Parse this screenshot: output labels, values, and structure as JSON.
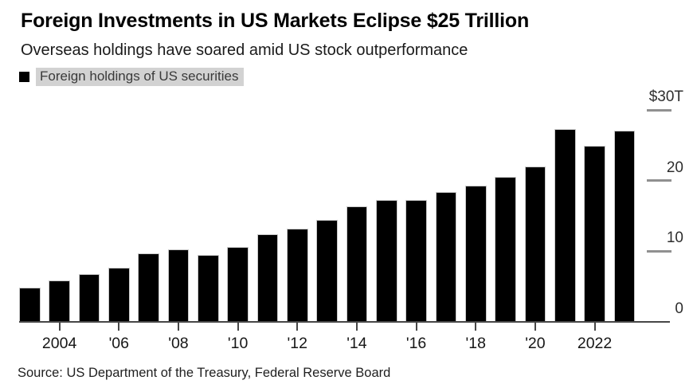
{
  "header": {
    "title": "Foreign Investments in US Markets Eclipse $25 Trillion",
    "subtitle": "Overseas holdings have soared amid US stock outperformance"
  },
  "legend": {
    "label": "Foreign holdings of US securities",
    "swatch_color": "#000000",
    "label_bg_color": "#d2d2d2"
  },
  "footer": {
    "source": "Source: US Department of the Treasury, Federal Reserve Board"
  },
  "chart_data": {
    "type": "bar",
    "title": "Foreign Investments in US Markets Eclipse $25 Trillion",
    "subtitle": "Overseas holdings have soared amid US stock outperformance",
    "series_name": "Foreign holdings of US securities",
    "unit": "USD trillions",
    "categories": [
      2003,
      2004,
      2005,
      2006,
      2007,
      2008,
      2009,
      2010,
      2011,
      2012,
      2013,
      2014,
      2015,
      2016,
      2017,
      2018,
      2019,
      2020,
      2021,
      2022,
      2023
    ],
    "values": [
      4.8,
      5.9,
      6.8,
      7.7,
      9.7,
      10.3,
      9.5,
      10.6,
      12.4,
      13.2,
      14.4,
      16.4,
      17.2,
      17.2,
      18.4,
      19.3,
      20.5,
      22.0,
      27.3,
      24.9,
      27.1
    ],
    "bar_color": "#000000",
    "ylim": [
      0,
      30
    ],
    "grid": false,
    "y_axis_side": "right",
    "legend_position": "top-left",
    "y_ticks": [
      {
        "value": 30,
        "label": "$30T"
      },
      {
        "value": 20,
        "label": "20"
      },
      {
        "value": 10,
        "label": "10"
      },
      {
        "value": 0,
        "label": "0"
      }
    ],
    "x_ticks": [
      {
        "year": 2004,
        "label": "2004"
      },
      {
        "year": 2006,
        "label": "'06"
      },
      {
        "year": 2008,
        "label": "'08"
      },
      {
        "year": 2010,
        "label": "'10"
      },
      {
        "year": 2012,
        "label": "'12"
      },
      {
        "year": 2014,
        "label": "'14"
      },
      {
        "year": 2016,
        "label": "'16"
      },
      {
        "year": 2018,
        "label": "'18"
      },
      {
        "year": 2020,
        "label": "'20"
      },
      {
        "year": 2022,
        "label": "2022"
      }
    ]
  }
}
